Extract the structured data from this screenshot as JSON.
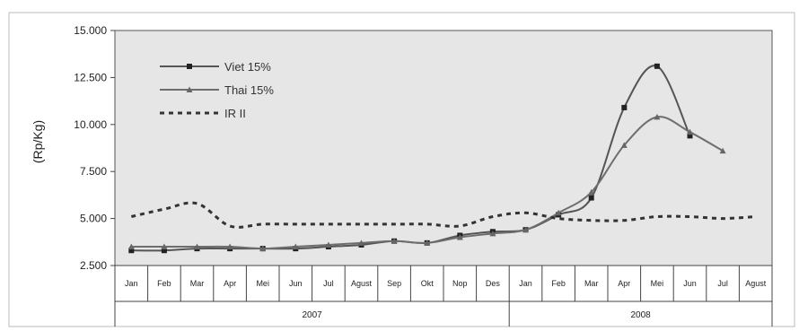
{
  "chart_data": {
    "type": "line",
    "title": "",
    "xlabel": "",
    "ylabel": "(Rp/Kg)",
    "ylim": [
      2500,
      15000
    ],
    "yticks": [
      "2.500",
      "5.000",
      "7.500",
      "10.000",
      "12.500",
      "15.000"
    ],
    "ytick_values": [
      2500,
      5000,
      7500,
      10000,
      12500,
      15000
    ],
    "categories": [
      "Jan",
      "Feb",
      "Mar",
      "Apr",
      "Mei",
      "Jun",
      "Jul",
      "Agust",
      "Sep",
      "Okt",
      "Nop",
      "Des",
      "Jan",
      "Feb",
      "Mar",
      "Apr",
      "Mei",
      "Jun",
      "Jul",
      "Agust"
    ],
    "years": [
      {
        "label": "2007",
        "start": 0,
        "end": 11
      },
      {
        "label": "2008",
        "start": 12,
        "end": 19
      }
    ],
    "legend_position": "top-left",
    "grid": false,
    "background": "#e6e6e6",
    "series": [
      {
        "name": "Viet 15%",
        "color": "#555555",
        "style": "solid",
        "marker": "square",
        "values": [
          3300,
          3300,
          3400,
          3400,
          3400,
          3400,
          3500,
          3600,
          3800,
          3700,
          4100,
          4300,
          4400,
          5200,
          6100,
          10900,
          13100,
          9400,
          null,
          null
        ]
      },
      {
        "name": "Thai 15%",
        "color": "#6e6e6e",
        "style": "solid",
        "marker": "triangle",
        "values": [
          3500,
          3500,
          3500,
          3500,
          3400,
          3500,
          3600,
          3700,
          3800,
          3700,
          4000,
          4200,
          4400,
          5300,
          6400,
          8900,
          10400,
          9600,
          8600,
          null
        ]
      },
      {
        "name": "IR II",
        "color": "#333333",
        "style": "dotted",
        "marker": "none",
        "values": [
          5100,
          5500,
          5800,
          4600,
          4700,
          4700,
          4700,
          4700,
          4700,
          4700,
          4600,
          5100,
          5300,
          5000,
          4900,
          4900,
          5100,
          5100,
          5000,
          5100
        ]
      }
    ]
  }
}
